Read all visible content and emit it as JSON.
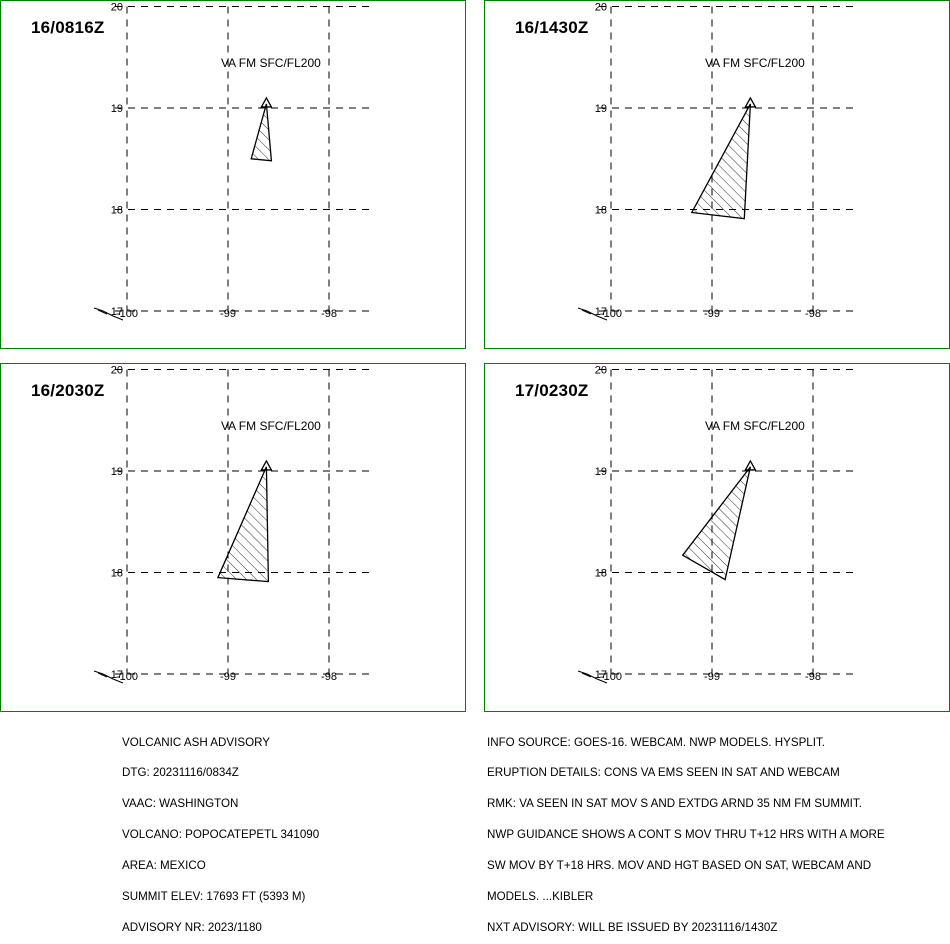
{
  "panels": [
    {
      "time": "16/0816Z",
      "layer": "VA FM SFC/FL200",
      "ash_polygon": [
        [
          -98.62,
          19.04
        ],
        [
          -98.77,
          18.5
        ],
        [
          -98.57,
          18.48
        ],
        [
          -98.62,
          19.04
        ]
      ]
    },
    {
      "time": "16/1430Z",
      "layer": "VA FM SFC/FL200",
      "ash_polygon": [
        [
          -98.62,
          19.04
        ],
        [
          -99.2,
          17.97
        ],
        [
          -98.68,
          17.91
        ],
        [
          -98.62,
          19.04
        ]
      ]
    },
    {
      "time": "16/2030Z",
      "layer": "VA FM SFC/FL200",
      "ash_polygon": [
        [
          -98.62,
          19.04
        ],
        [
          -99.1,
          17.95
        ],
        [
          -98.6,
          17.91
        ],
        [
          -98.62,
          19.04
        ]
      ]
    },
    {
      "time": "17/0230Z",
      "layer": "VA FM SFC/FL200",
      "ash_polygon": [
        [
          -98.62,
          19.04
        ],
        [
          -99.29,
          18.17
        ],
        [
          -98.87,
          17.93
        ],
        [
          -98.62,
          19.04
        ]
      ]
    }
  ],
  "map": {
    "lat_ticks": [
      "20",
      "19",
      "18",
      "17"
    ],
    "lon_ticks": [
      "-100",
      "-99",
      "-98"
    ],
    "volcano_marker": "triangle-icon",
    "volcano_position": [
      -98.62,
      19.04
    ]
  },
  "advisory_left": [
    "VOLCANIC ASH ADVISORY",
    "DTG: 20231116/0834Z",
    "VAAC: WASHINGTON",
    "VOLCANO: POPOCATEPETL 341090",
    "AREA: MEXICO",
    "SUMMIT ELEV: 17693 FT (5393 M)",
    "ADVISORY NR: 2023/1180"
  ],
  "advisory_right": [
    "INFO SOURCE: GOES-16. WEBCAM. NWP MODELS. HYSPLIT.",
    "ERUPTION DETAILS: CONS VA EMS SEEN IN SAT AND WEBCAM",
    "RMK: VA SEEN IN SAT MOV S AND EXTDG ARND 35 NM FM SUMMIT.",
    "NWP GUIDANCE SHOWS A CONT S MOV THRU T+12 HRS WITH A MORE",
    "SW MOV BY T+18 HRS. MOV AND HGT BASED ON SAT, WEBCAM AND",
    "MODELS. ...KIBLER",
    "NXT ADVISORY: WILL BE ISSUED BY 20231116/1430Z"
  ],
  "colors": {
    "panel_border": "#008000",
    "grid": "#000000"
  }
}
